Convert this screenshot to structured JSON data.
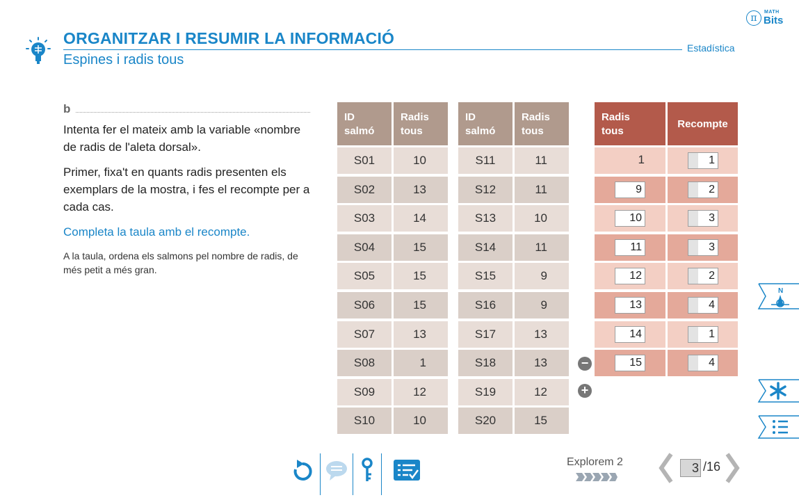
{
  "header": {
    "title": "ORGANITZAR I RESUMIR LA INFORMACIÓ",
    "subtitle": "Espines i radis tous",
    "section": "Estadística",
    "brand_top": "MATH",
    "brand_bottom": "Bits",
    "brand_symbol": "π"
  },
  "content": {
    "label": "b",
    "para1": "Intenta fer el mateix amb la variable «nombre de radis de l'aleta dorsal».",
    "para2": "Primer, fixa't en quants radis presenten els exemplars de la mostra, i fes el recompte per a cada cas.",
    "instruction": "Completa la taula amb el recompte.",
    "hint": "A la taula, ordena els salmons pel nombre de radis, de més petit a més gran."
  },
  "table": {
    "col_id_line1": "ID",
    "col_id_line2": "salmó",
    "col_radis_line1": "Radis",
    "col_radis_line2": "tous",
    "rows_left": [
      {
        "id": "S01",
        "radis": "10"
      },
      {
        "id": "S02",
        "radis": "13"
      },
      {
        "id": "S03",
        "radis": "14"
      },
      {
        "id": "S04",
        "radis": "15"
      },
      {
        "id": "S05",
        "radis": "15"
      },
      {
        "id": "S06",
        "radis": "15"
      },
      {
        "id": "S07",
        "radis": "13"
      },
      {
        "id": "S08",
        "radis": "1"
      },
      {
        "id": "S09",
        "radis": "12"
      },
      {
        "id": "S10",
        "radis": "10"
      }
    ],
    "rows_right": [
      {
        "id": "S11",
        "radis": "11"
      },
      {
        "id": "S12",
        "radis": "11"
      },
      {
        "id": "S13",
        "radis": "10"
      },
      {
        "id": "S14",
        "radis": "11"
      },
      {
        "id": "S15",
        "radis": "9"
      },
      {
        "id": "S16",
        "radis": "9"
      },
      {
        "id": "S17",
        "radis": "13"
      },
      {
        "id": "S18",
        "radis": "13"
      },
      {
        "id": "S19",
        "radis": "12"
      },
      {
        "id": "S20",
        "radis": "15"
      }
    ]
  },
  "count_table": {
    "col_radis_line1": "Radis",
    "col_radis_line2": "tous",
    "col_count": "Recompte",
    "rows": [
      {
        "radis": "1",
        "count": "1"
      },
      {
        "radis": "9",
        "count": "2"
      },
      {
        "radis": "10",
        "count": "3"
      },
      {
        "radis": "11",
        "count": "3"
      },
      {
        "radis": "12",
        "count": "2"
      },
      {
        "radis": "13",
        "count": "4"
      },
      {
        "radis": "14",
        "count": "1"
      },
      {
        "radis": "15",
        "count": "4"
      }
    ],
    "remove_symbol": "−",
    "add_symbol": "+"
  },
  "side_tabs": {
    "compass_letter": "N",
    "star_symbol": "✱"
  },
  "footer": {
    "explore_label": "Explorem 2",
    "page_current": "3",
    "page_total": "/16"
  },
  "colors": {
    "accent": "#1a86c8",
    "header_gray": "#b09a8d",
    "header_red": "#b35a4b",
    "row_light": "#e8ddd7",
    "row_dark": "#dacfc8",
    "count_light": "#f3cfc4",
    "count_dark": "#e4a99a"
  }
}
